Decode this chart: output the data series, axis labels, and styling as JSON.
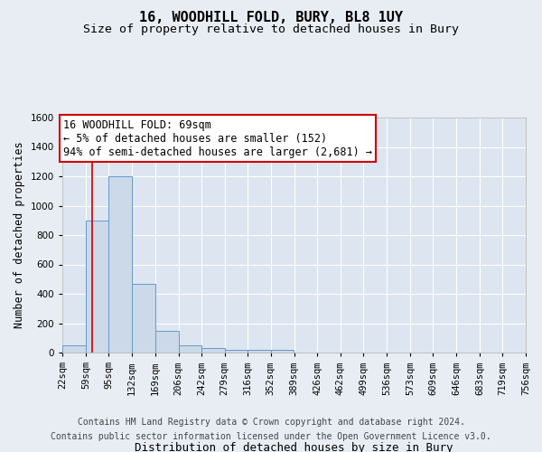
{
  "title1": "16, WOODHILL FOLD, BURY, BL8 1UY",
  "title2": "Size of property relative to detached houses in Bury",
  "xlabel": "Distribution of detached houses by size in Bury",
  "ylabel": "Number of detached properties",
  "footnote1": "Contains HM Land Registry data © Crown copyright and database right 2024.",
  "footnote2": "Contains public sector information licensed under the Open Government Licence v3.0.",
  "bin_edges": [
    22,
    59,
    95,
    132,
    169,
    206,
    242,
    279,
    316,
    352,
    389,
    426,
    462,
    499,
    536,
    573,
    609,
    646,
    683,
    719,
    756
  ],
  "bar_heights": [
    50,
    900,
    1200,
    470,
    150,
    50,
    30,
    20,
    20,
    20,
    0,
    0,
    0,
    0,
    0,
    0,
    0,
    0,
    0,
    0
  ],
  "bar_color": "#ccd9e8",
  "bar_edge_color": "#6699cc",
  "property_line_x": 69,
  "property_line_color": "#cc0000",
  "annotation_line1": "16 WOODHILL FOLD: 69sqm",
  "annotation_line2": "← 5% of detached houses are smaller (152)",
  "annotation_line3": "94% of semi-detached houses are larger (2,681) →",
  "annotation_box_color": "#cc0000",
  "ylim": [
    0,
    1600
  ],
  "yticks": [
    0,
    200,
    400,
    600,
    800,
    1000,
    1200,
    1400,
    1600
  ],
  "background_color": "#e8edf3",
  "plot_background": "#dce5f0",
  "grid_color": "#ffffff",
  "title1_fontsize": 11,
  "title2_fontsize": 9.5,
  "tick_fontsize": 7.5,
  "ylabel_fontsize": 8.5,
  "xlabel_fontsize": 9,
  "footnote_fontsize": 7,
  "annotation_fontsize": 8.5
}
